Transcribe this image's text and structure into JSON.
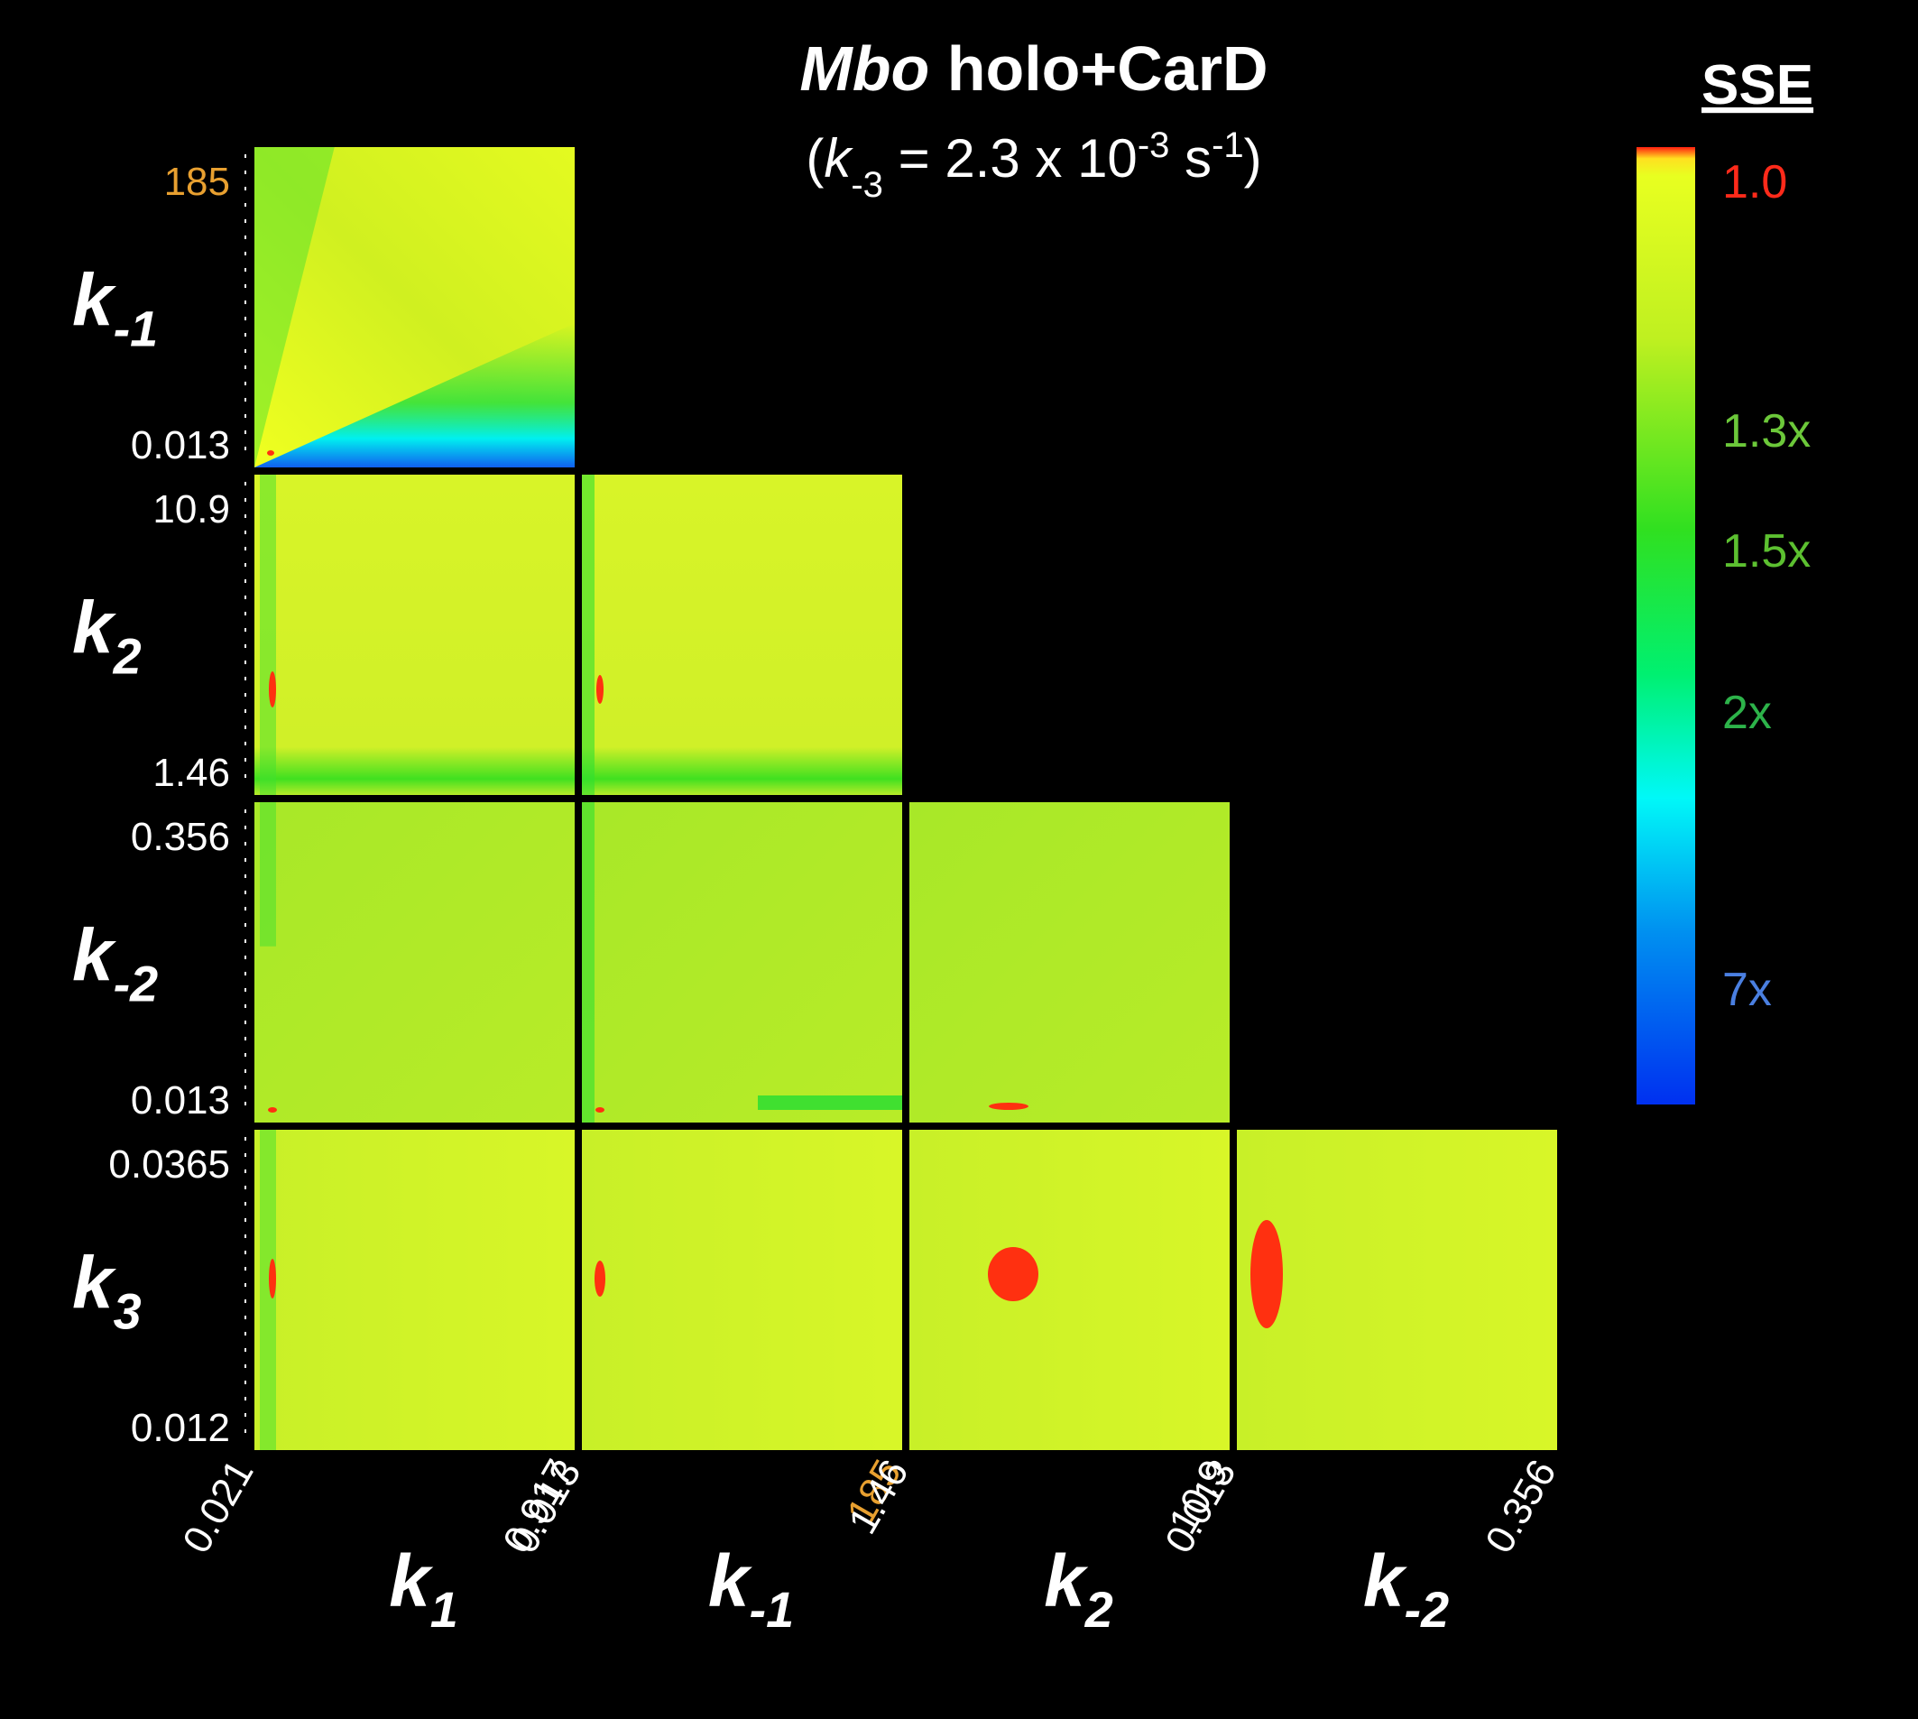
{
  "chart_data": {
    "type": "heatmap-matrix",
    "title": {
      "italic": "Mbo",
      "text": " holo+CarD"
    },
    "subtitle": [
      {
        "text": "(",
        "style": "normal"
      },
      {
        "text": "k",
        "style": "italic"
      },
      {
        "text": "-3",
        "style": "sub"
      },
      {
        "text": " = 2.3 x 10",
        "style": "normal"
      },
      {
        "text": "-3",
        "style": "sup"
      },
      {
        "text": " s",
        "style": "normal"
      },
      {
        "text": "-1",
        "style": "sup"
      },
      {
        "text": ")",
        "style": "normal"
      }
    ],
    "rows": [
      {
        "symbol": "k",
        "sub": "-1",
        "range": [
          0.013,
          185
        ]
      },
      {
        "symbol": "k",
        "sub": "2",
        "range": [
          1.46,
          10.9
        ]
      },
      {
        "symbol": "k",
        "sub": "-2",
        "range": [
          0.013,
          0.356
        ]
      },
      {
        "symbol": "k",
        "sub": "3",
        "range": [
          0.012,
          0.0365
        ]
      }
    ],
    "columns": [
      {
        "symbol": "k",
        "sub": "1",
        "range": [
          0.021,
          0.917
        ]
      },
      {
        "symbol": "k",
        "sub": "-1",
        "range": [
          0.013,
          185
        ]
      },
      {
        "symbol": "k",
        "sub": "2",
        "range": [
          1.46,
          10.9
        ]
      },
      {
        "symbol": "k",
        "sub": "-2",
        "range": [
          0.013,
          0.356
        ]
      }
    ],
    "highlight": {
      "value": 185,
      "color": "#e8a030"
    },
    "colorbar": {
      "title": "SSE",
      "labels": [
        {
          "text": "1.0",
          "color": "#ff2a1a"
        },
        {
          "text": "1.3x",
          "color": "#6cc83a"
        },
        {
          "text": "1.5x",
          "color": "#5cc030"
        },
        {
          "text": "2x",
          "color": "#2db34a"
        },
        {
          "text": "7x",
          "color": "#4a7fe0"
        }
      ]
    }
  }
}
